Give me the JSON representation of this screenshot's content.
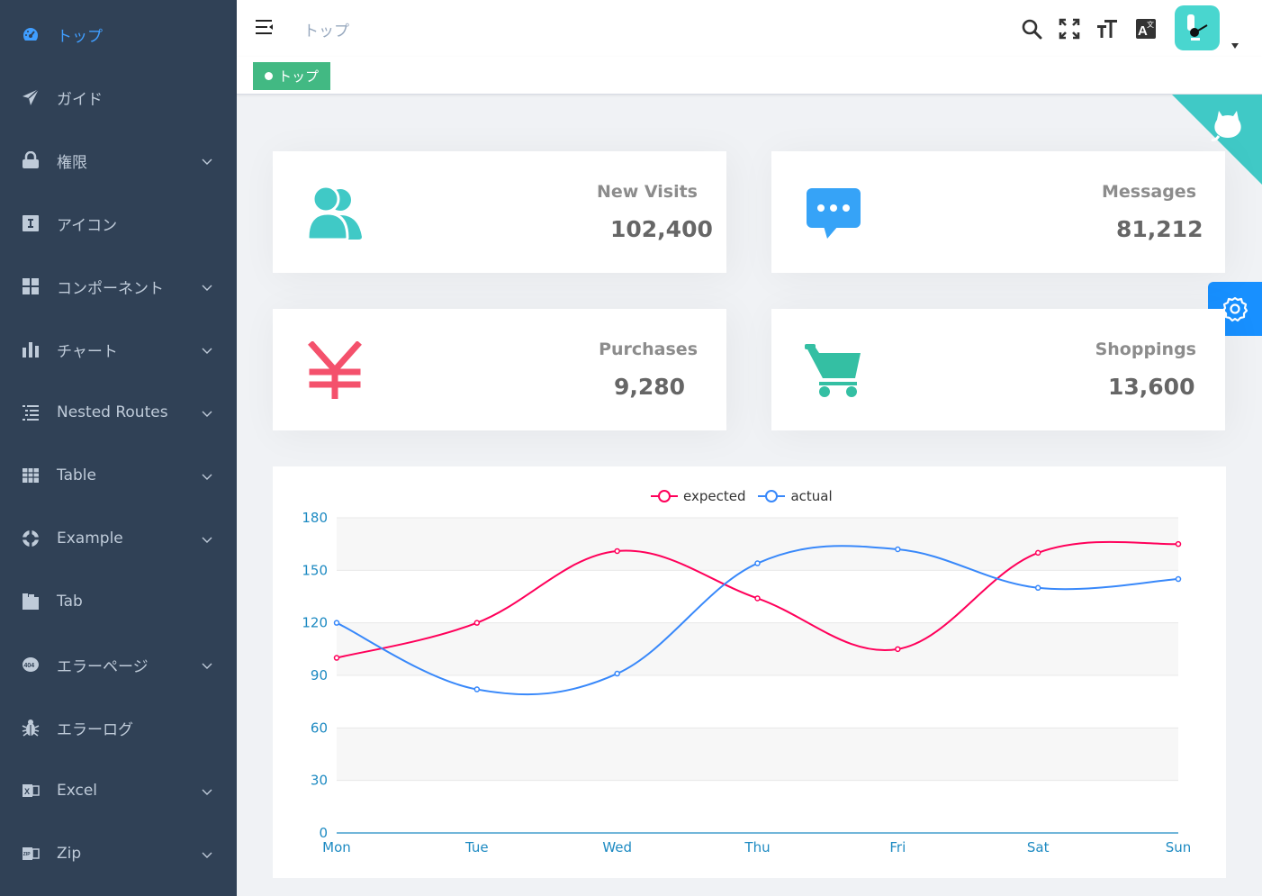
{
  "sidebar": {
    "items": [
      {
        "label": "トップ",
        "icon": "dashboard-icon",
        "active": true,
        "has_arrow": false
      },
      {
        "label": "ガイド",
        "icon": "paper-plane-icon",
        "active": false,
        "has_arrow": false
      },
      {
        "label": "権限",
        "icon": "lock-icon",
        "active": false,
        "has_arrow": true
      },
      {
        "label": "アイコン",
        "icon": "icon-font-icon",
        "active": false,
        "has_arrow": false
      },
      {
        "label": "コンポーネント",
        "icon": "component-grid-icon",
        "active": false,
        "has_arrow": true
      },
      {
        "label": "チャート",
        "icon": "bar-chart-icon",
        "active": false,
        "has_arrow": true
      },
      {
        "label": "Nested Routes",
        "icon": "nested-list-icon",
        "active": false,
        "has_arrow": true
      },
      {
        "label": "Table",
        "icon": "table-icon",
        "active": false,
        "has_arrow": true
      },
      {
        "label": "Example",
        "icon": "example-lifebuoy-icon",
        "active": false,
        "has_arrow": true
      },
      {
        "label": "Tab",
        "icon": "tab-icon",
        "active": false,
        "has_arrow": false
      },
      {
        "label": "エラーページ",
        "icon": "error-404-icon",
        "active": false,
        "has_arrow": true
      },
      {
        "label": "エラーログ",
        "icon": "bug-icon",
        "active": false,
        "has_arrow": false
      },
      {
        "label": "Excel",
        "icon": "excel-icon",
        "active": false,
        "has_arrow": true
      },
      {
        "label": "Zip",
        "icon": "zip-icon",
        "active": false,
        "has_arrow": true
      }
    ]
  },
  "navbar": {
    "breadcrumb": "トップ",
    "icons": [
      "search-icon",
      "fullscreen-icon",
      "text-size-icon",
      "translate-icon"
    ]
  },
  "tags": {
    "active_tag": "トップ"
  },
  "panels": [
    {
      "title": "New Visits",
      "value": "102,400",
      "icon": "peoples-icon",
      "color": "#40c9c6"
    },
    {
      "title": "Messages",
      "value": "81,212",
      "icon": "message-icon",
      "color": "#36a3f7"
    },
    {
      "title": "Purchases",
      "value": "9,280",
      "icon": "yen-icon",
      "color": "#f4516c"
    },
    {
      "title": "Shoppings",
      "value": "13,600",
      "icon": "shopping-cart-icon",
      "color": "#34bfa3"
    }
  ],
  "chart_data": {
    "type": "line",
    "categories": [
      "Mon",
      "Tue",
      "Wed",
      "Thu",
      "Fri",
      "Sat",
      "Sun"
    ],
    "series": [
      {
        "name": "expected",
        "values": [
          100,
          120,
          161,
          134,
          105,
          160,
          165
        ],
        "color": "#ff005a"
      },
      {
        "name": "actual",
        "values": [
          120,
          82,
          91,
          154,
          162,
          140,
          145
        ],
        "color": "#3888fa"
      }
    ],
    "yticks": [
      "0",
      "30",
      "60",
      "90",
      "120",
      "150",
      "180"
    ],
    "ylim": [
      0,
      180
    ],
    "legend_position": "top-center",
    "grid": true,
    "smooth": true
  }
}
